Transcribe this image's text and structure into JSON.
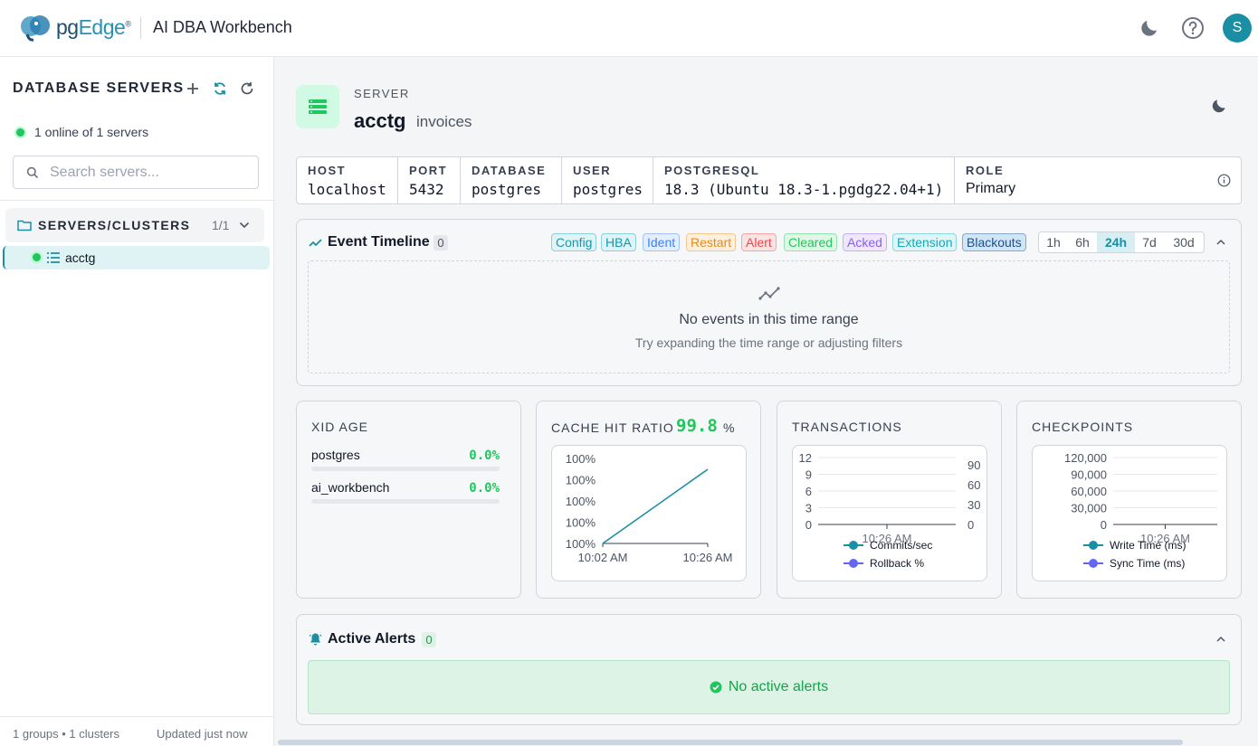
{
  "header": {
    "logo_pg": "pg",
    "logo_edge": "Edge",
    "logo_tm": "®",
    "app_title": "AI DBA Workbench",
    "avatar_initial": "S"
  },
  "sidebar": {
    "title": "DATABASE SERVERS",
    "online_status": "1 online of 1 servers",
    "search_placeholder": "Search servers...",
    "group": {
      "label": "SERVERS/CLUSTERS",
      "count": "1/1"
    },
    "servers": [
      {
        "name": "acctg",
        "status": "online"
      }
    ],
    "footer_left": "1 groups • 1 clusters",
    "footer_right": "Updated just now"
  },
  "server": {
    "kicker": "SERVER",
    "name": "acctg",
    "database_label": "invoices",
    "info": [
      {
        "label": "HOST",
        "value": "localhost"
      },
      {
        "label": "PORT",
        "value": "5432"
      },
      {
        "label": "DATABASE",
        "value": "postgres"
      },
      {
        "label": "USER",
        "value": "postgres"
      },
      {
        "label": "POSTGRESQL",
        "value": "18.3 (Ubuntu 18.3-1.pgdg22.04+1)"
      },
      {
        "label": "ROLE",
        "value": "Primary"
      }
    ]
  },
  "timeline": {
    "title": "Event Timeline",
    "count": "0",
    "filters": [
      {
        "label": "Config",
        "color": "#0e9bb0",
        "bg": "#e0f4f7"
      },
      {
        "label": "HBA",
        "color": "#0e9bb0",
        "bg": "#e0f4f7"
      },
      {
        "label": "Ident",
        "color": "#3b82f6",
        "bg": "#e5eefe"
      },
      {
        "label": "Restart",
        "color": "#e58a1f",
        "bg": "#fdf0df"
      },
      {
        "label": "Alert",
        "color": "#ef4444",
        "bg": "#fde4e4"
      },
      {
        "label": "Cleared",
        "color": "#22c55e",
        "bg": "#e0f7e8"
      },
      {
        "label": "Acked",
        "color": "#8b5cf6",
        "bg": "#efe8fd"
      },
      {
        "label": "Extension",
        "color": "#14a8b8",
        "bg": "#dff5f7"
      },
      {
        "label": "Blackouts",
        "color": "#1f4e8c",
        "bg": "#cfe6f6"
      }
    ],
    "ranges": [
      {
        "label": "1h",
        "active": false
      },
      {
        "label": "6h",
        "active": false
      },
      {
        "label": "24h",
        "active": true
      },
      {
        "label": "7d",
        "active": false
      },
      {
        "label": "30d",
        "active": false
      }
    ],
    "empty_title": "No events in this time range",
    "empty_subtitle": "Try expanding the time range or adjusting filters"
  },
  "xid": {
    "title": "XID AGE",
    "rows": [
      {
        "name": "postgres",
        "value": "0.0%"
      },
      {
        "name": "ai_workbench",
        "value": "0.0%"
      }
    ]
  },
  "cache": {
    "title": "CACHE HIT RATIO",
    "value": "99.8",
    "unit": "%"
  },
  "transactions": {
    "title": "TRANSACTIONS"
  },
  "checkpoints": {
    "title": "CHECKPOINTS"
  },
  "alerts": {
    "title": "Active Alerts",
    "count": "0",
    "empty": "No active alerts"
  },
  "colors": {
    "accent": "#1a8fa3",
    "green": "#22c55e",
    "purple": "#6366f1"
  },
  "chart_data": [
    {
      "type": "line",
      "title": "CACHE HIT RATIO",
      "x": [
        "10:02 AM",
        "10:26 AM"
      ],
      "y_ticks": [
        "100%",
        "100%",
        "100%",
        "100%",
        "100%"
      ],
      "series": [
        {
          "values": [
            100,
            100
          ]
        }
      ]
    },
    {
      "type": "line",
      "title": "TRANSACTIONS",
      "x": [
        "10:26 AM"
      ],
      "y_ticks_left": [
        "12",
        "9",
        "6",
        "3",
        "0"
      ],
      "y_ticks_right": [
        "90",
        "60",
        "30",
        "0"
      ],
      "series": [
        {
          "name": "Commits/sec",
          "color": "#1a8fa3",
          "values": [
            0
          ]
        },
        {
          "name": "Rollback %",
          "color": "#6366f1",
          "values": [
            0
          ]
        }
      ]
    },
    {
      "type": "line",
      "title": "CHECKPOINTS",
      "x": [
        "10:26 AM"
      ],
      "y_ticks": [
        "120,000",
        "90,000",
        "60,000",
        "30,000",
        "0"
      ],
      "series": [
        {
          "name": "Write Time (ms)",
          "color": "#1a8fa3",
          "values": [
            0
          ]
        },
        {
          "name": "Sync Time (ms)",
          "color": "#6366f1",
          "values": [
            0
          ]
        }
      ]
    }
  ]
}
